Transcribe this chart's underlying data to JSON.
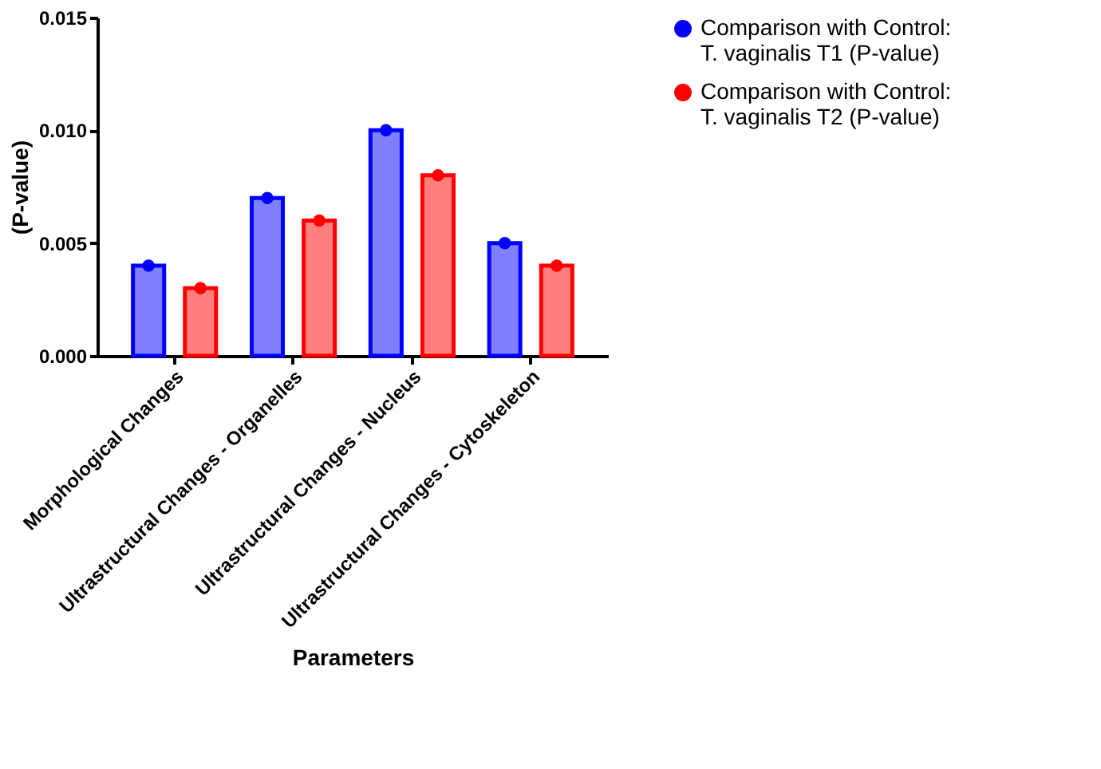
{
  "chart_data": {
    "type": "bar",
    "xlabel": "Parameters",
    "ylabel": "(P-value)",
    "categories": [
      "Morphological Changes",
      "Ultrastructural Changes - Organelles",
      "Ultrastructural Changes - Nucleus",
      "Ultrastructural Changes - Cytoskeleton"
    ],
    "series": [
      {
        "name": "Comparison with Control: T. vaginalis T1 (P-value)",
        "color": "#0000ff",
        "values": [
          0.004,
          0.007,
          0.01,
          0.005
        ]
      },
      {
        "name": "Comparison with Control: T. vaginalis T2 (P-value)",
        "color": "#ff0000",
        "values": [
          0.003,
          0.006,
          0.008,
          0.004
        ]
      },
      {
        "type": "scatter",
        "color": "#0000ff",
        "marker": "circle",
        "values": [
          0.004,
          0.007,
          0.01,
          0.005
        ]
      },
      {
        "type": "scatter",
        "color": "#ff0000",
        "marker": "circle",
        "values": [
          0.003,
          0.006,
          0.008,
          0.004
        ]
      }
    ],
    "ylim": [
      0,
      0.015
    ],
    "yticks": [
      {
        "value": 0,
        "label": "0.000"
      },
      {
        "value": 0.005,
        "label": "0.005"
      },
      {
        "value": 0.01,
        "label": "0.010"
      },
      {
        "value": 0.015,
        "label": "0.015"
      }
    ],
    "grid": false,
    "legend": "top right"
  }
}
